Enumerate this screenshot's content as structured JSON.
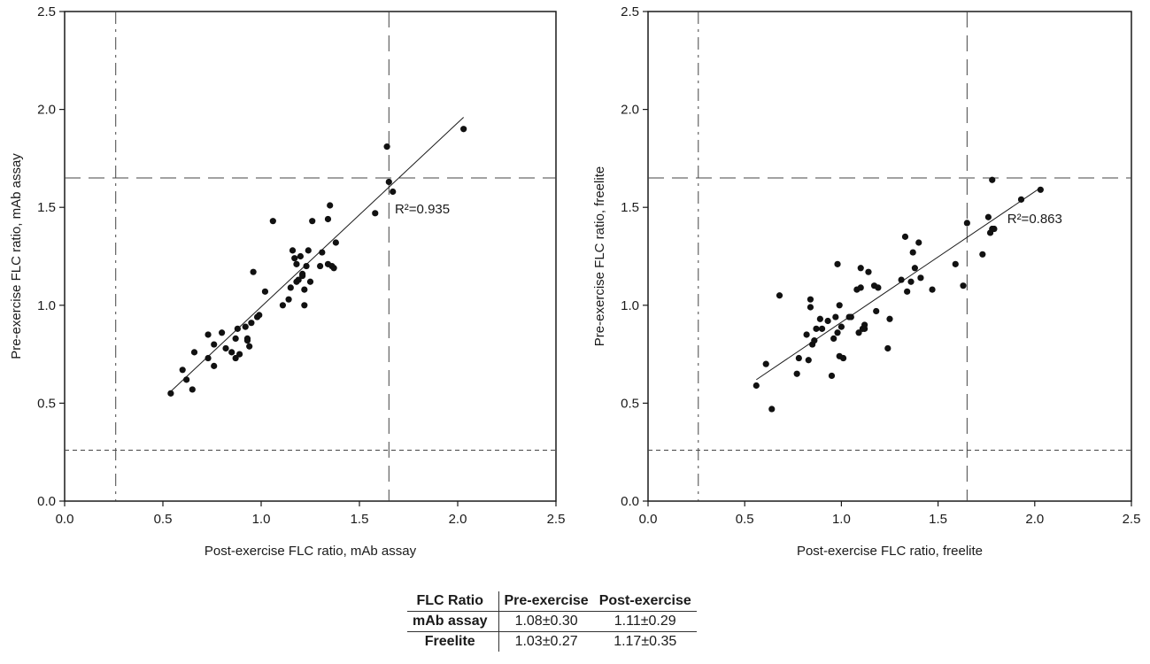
{
  "colors": {
    "axis": "#1a1a1a",
    "points": "#111111",
    "reference_lines": "#444444"
  },
  "chart_data": [
    {
      "type": "scatter",
      "xlabel": "Post-exercise FLC ratio, mAb assay",
      "ylabel": "Pre-exercise FLC ratio, mAb assay",
      "xlim": [
        0.0,
        2.5
      ],
      "ylim": [
        0.0,
        2.5
      ],
      "xticks": [
        "0.0",
        "0.5",
        "1.0",
        "1.5",
        "2.0",
        "2.5"
      ],
      "yticks": [
        "0.0",
        "0.5",
        "1.0",
        "1.5",
        "2.0",
        "2.5"
      ],
      "grid": false,
      "annotation": {
        "text": "R²=0.935",
        "x": 1.82,
        "y": 1.47
      },
      "fit_line": {
        "x": [
          0.54,
          2.03
        ],
        "y": [
          0.56,
          1.96
        ]
      },
      "reference_lines": {
        "vertical": [
          0.26,
          1.65
        ],
        "horizontal": [
          0.26,
          1.65
        ]
      },
      "points": {
        "x": [
          0.54,
          0.6,
          0.62,
          0.65,
          0.66,
          0.73,
          0.73,
          0.76,
          0.76,
          0.8,
          0.82,
          0.85,
          0.87,
          0.87,
          0.88,
          0.89,
          0.92,
          0.93,
          0.93,
          0.94,
          0.95,
          0.96,
          0.98,
          0.99,
          1.02,
          1.06,
          1.11,
          1.14,
          1.15,
          1.16,
          1.17,
          1.18,
          1.18,
          1.19,
          1.2,
          1.21,
          1.21,
          1.22,
          1.22,
          1.23,
          1.24,
          1.25,
          1.26,
          1.3,
          1.31,
          1.34,
          1.34,
          1.35,
          1.36,
          1.37,
          1.38,
          1.58,
          1.64,
          1.65,
          1.67,
          2.03
        ],
        "y": [
          0.55,
          0.67,
          0.62,
          0.57,
          0.76,
          0.85,
          0.73,
          0.8,
          0.69,
          0.86,
          0.78,
          0.76,
          0.83,
          0.73,
          0.88,
          0.75,
          0.89,
          0.83,
          0.82,
          0.79,
          0.91,
          1.17,
          0.94,
          0.95,
          1.07,
          1.43,
          1.0,
          1.03,
          1.09,
          1.28,
          1.24,
          1.21,
          1.12,
          1.13,
          1.25,
          1.16,
          1.15,
          1.08,
          1.0,
          1.2,
          1.28,
          1.12,
          1.43,
          1.2,
          1.27,
          1.44,
          1.21,
          1.51,
          1.2,
          1.19,
          1.32,
          1.47,
          1.81,
          1.63,
          1.58,
          1.9
        ]
      }
    },
    {
      "type": "scatter",
      "xlabel": "Post-exercise FLC ratio, freelite",
      "ylabel": "Pre-exercise FLC ratio, freelite",
      "xlim": [
        0.0,
        2.5
      ],
      "ylim": [
        0.0,
        2.5
      ],
      "xticks": [
        "0.0",
        "0.5",
        "1.0",
        "1.5",
        "2.0",
        "2.5"
      ],
      "yticks": [
        "0.0",
        "0.5",
        "1.0",
        "1.5",
        "2.0",
        "2.5"
      ],
      "grid": false,
      "annotation": {
        "text": "R²=0.863",
        "x": 2.0,
        "y": 1.42
      },
      "fit_line": {
        "x": [
          0.56,
          2.03
        ],
        "y": [
          0.62,
          1.6
        ]
      },
      "reference_lines": {
        "vertical": [
          0.26,
          1.65
        ],
        "horizontal": [
          0.26,
          1.65
        ]
      },
      "points": {
        "x": [
          0.56,
          0.61,
          0.64,
          0.68,
          0.77,
          0.78,
          0.82,
          0.83,
          0.84,
          0.84,
          0.85,
          0.86,
          0.87,
          0.89,
          0.9,
          0.93,
          0.95,
          0.96,
          0.97,
          0.98,
          0.98,
          0.99,
          0.99,
          1.0,
          1.01,
          1.04,
          1.05,
          1.08,
          1.09,
          1.1,
          1.1,
          1.11,
          1.12,
          1.12,
          1.14,
          1.17,
          1.18,
          1.19,
          1.24,
          1.25,
          1.31,
          1.33,
          1.34,
          1.36,
          1.37,
          1.38,
          1.4,
          1.41,
          1.47,
          1.59,
          1.63,
          1.65,
          1.73,
          1.76,
          1.77,
          1.78,
          1.78,
          1.79,
          1.93,
          2.03
        ],
        "y": [
          0.59,
          0.7,
          0.47,
          1.05,
          0.65,
          0.73,
          0.85,
          0.72,
          0.99,
          1.03,
          0.8,
          0.82,
          0.88,
          0.93,
          0.88,
          0.92,
          0.64,
          0.83,
          0.94,
          0.86,
          1.21,
          1.0,
          0.74,
          0.89,
          0.73,
          0.94,
          0.94,
          1.08,
          0.86,
          1.09,
          1.19,
          0.88,
          0.88,
          0.9,
          1.17,
          1.1,
          0.97,
          1.09,
          0.78,
          0.93,
          1.13,
          1.35,
          1.07,
          1.12,
          1.27,
          1.19,
          1.32,
          1.14,
          1.08,
          1.21,
          1.1,
          1.42,
          1.26,
          1.45,
          1.37,
          1.64,
          1.39,
          1.39,
          1.54,
          1.59
        ]
      }
    }
  ],
  "summary_table": {
    "headers": [
      "FLC Ratio",
      "Pre-exercise",
      "Post-exercise"
    ],
    "rows": [
      [
        "mAb assay",
        "1.08±0.30",
        "1.11±0.29"
      ],
      [
        "Freelite",
        "1.03±0.27",
        "1.17±0.35"
      ]
    ]
  }
}
